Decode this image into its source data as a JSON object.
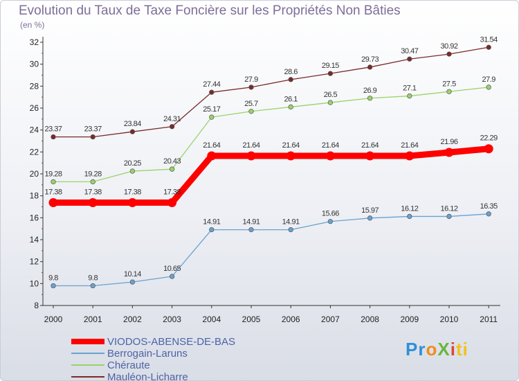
{
  "title": "Evolution du Taux de Taxe Foncière sur les Propriétés Non Bâties",
  "unit": "(en %)",
  "logo": {
    "text": "ProXiti",
    "letters": [
      "Pr",
      "o",
      "X",
      "i",
      "ti"
    ]
  },
  "chart_data": {
    "type": "line",
    "title": "Evolution du Taux de Taxe Foncière sur les Propriétés Non Bâties",
    "ylabel": "(en %)",
    "xlabel": "",
    "x": [
      2000,
      2001,
      2002,
      2003,
      2004,
      2005,
      2006,
      2007,
      2008,
      2009,
      2010,
      2011
    ],
    "ylim": [
      8,
      32
    ],
    "yticks": [
      8,
      10,
      12,
      14,
      16,
      18,
      20,
      22,
      24,
      26,
      28,
      30,
      32
    ],
    "grid": false,
    "legend_position": "bottom-left",
    "series": [
      {
        "name": "VIODOS-ABENSE-DE-BAS",
        "color": "#ff0000",
        "values": [
          17.38,
          17.38,
          17.38,
          17.38,
          21.64,
          21.64,
          21.64,
          21.64,
          21.64,
          21.64,
          21.96,
          22.29
        ]
      },
      {
        "name": "Berrogain-Laruns",
        "color": "#6aa1cf",
        "values": [
          9.8,
          9.8,
          10.14,
          10.65,
          14.91,
          14.91,
          14.91,
          15.66,
          15.97,
          16.12,
          16.12,
          16.35
        ]
      },
      {
        "name": "Chéraute",
        "color": "#9ad26a",
        "values": [
          19.28,
          19.28,
          20.25,
          20.43,
          25.17,
          25.7,
          26.1,
          26.5,
          26.9,
          27.1,
          27.5,
          27.9
        ]
      },
      {
        "name": "Mauléon-Licharre",
        "color": "#7a2a2a",
        "values": [
          23.37,
          23.37,
          23.84,
          24.31,
          27.44,
          27.9,
          28.6,
          29.15,
          29.73,
          30.47,
          30.92,
          31.54
        ]
      }
    ]
  }
}
